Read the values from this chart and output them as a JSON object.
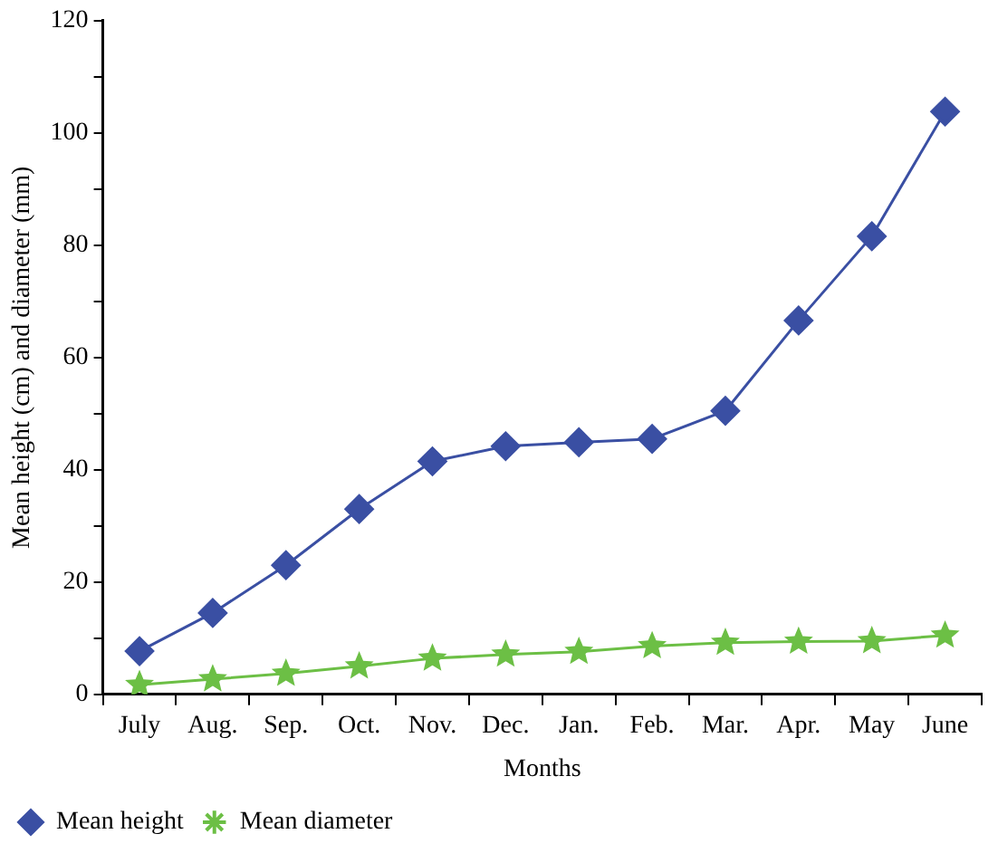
{
  "chart_data": {
    "type": "line",
    "xlabel": "Months",
    "ylabel": "Mean height (cm) and diameter (mm)",
    "categories": [
      "July",
      "Aug.",
      "Sep.",
      "Oct.",
      "Nov.",
      "Dec.",
      "Jan.",
      "Feb.",
      "Mar.",
      "Apr.",
      "May",
      "June"
    ],
    "series": [
      {
        "name": "Mean height",
        "color": "#3a4fa3",
        "marker": "diamond",
        "values": [
          7.7,
          14.5,
          23,
          33,
          41.5,
          44.2,
          44.9,
          45.5,
          50.5,
          66.6,
          81.6,
          103.8
        ]
      },
      {
        "name": "Mean diameter",
        "color": "#6cbf45",
        "marker": "star",
        "values": [
          1.7,
          2.7,
          3.7,
          5,
          6.4,
          7.1,
          7.6,
          8.6,
          9.2,
          9.4,
          9.5,
          10.5
        ]
      }
    ],
    "ylim": [
      0,
      120
    ],
    "yticks": [
      0,
      {
        "value": 10,
        "label": null
      },
      20,
      {
        "value": 30,
        "label": null
      },
      40,
      {
        "value": 50,
        "label": null
      },
      60,
      {
        "value": 70,
        "label": null
      },
      80,
      {
        "value": 90,
        "label": null
      },
      100,
      {
        "value": 110,
        "label": null
      },
      120
    ],
    "grid": false,
    "legend": "bottom left",
    "line_style": "solid"
  }
}
